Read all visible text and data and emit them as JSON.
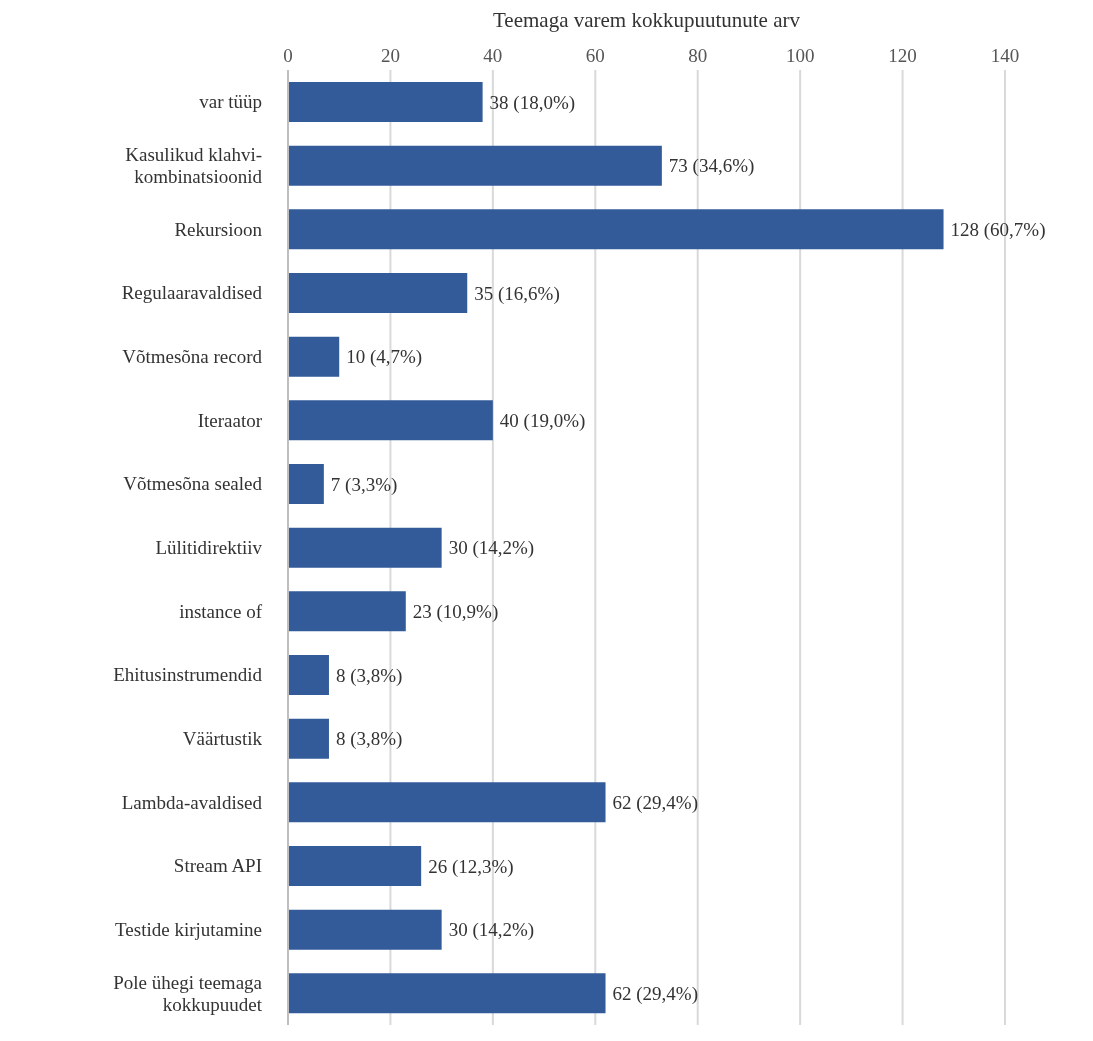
{
  "chart_data": {
    "type": "bar",
    "orientation": "horizontal",
    "xlabel": "Teemaga varem kokkupuutunute arv",
    "categories": [
      "var tüüp",
      "Kasulikud klahvi-kombinatsioonid",
      "Rekursioon",
      "Regulaaravaldised",
      "Võtmesõna record",
      "Iteraator",
      "Võtmesõna sealed",
      "Lülitidirektiiv",
      "instance of",
      "Ehitusinstrumendid",
      "Väärtustik",
      "Lambda-avaldised",
      "Stream API",
      "Testide kirjutamine",
      "Pole ühegi teemaga kokkupuudet"
    ],
    "values": [
      38,
      73,
      128,
      35,
      10,
      40,
      7,
      30,
      23,
      8,
      8,
      62,
      26,
      30,
      62
    ],
    "value_labels": [
      "38 (18,0%)",
      "73 (34,6%)",
      "128 (60,7%)",
      "35 (16,6%)",
      "10 (4,7%)",
      "40 (19,0%)",
      "7 (3,3%)",
      "30 (14,2%)",
      "23 (10,9%)",
      "8 (3,8%)",
      "8 (3,8%)",
      "62 (29,4%)",
      "26 (12,3%)",
      "30 (14,2%)",
      "62 (29,4%)"
    ],
    "color": "#335b9a",
    "xlim": [
      0,
      140
    ],
    "xticks": [
      0,
      20,
      40,
      60,
      80,
      100,
      120,
      140
    ],
    "grid": "x"
  }
}
